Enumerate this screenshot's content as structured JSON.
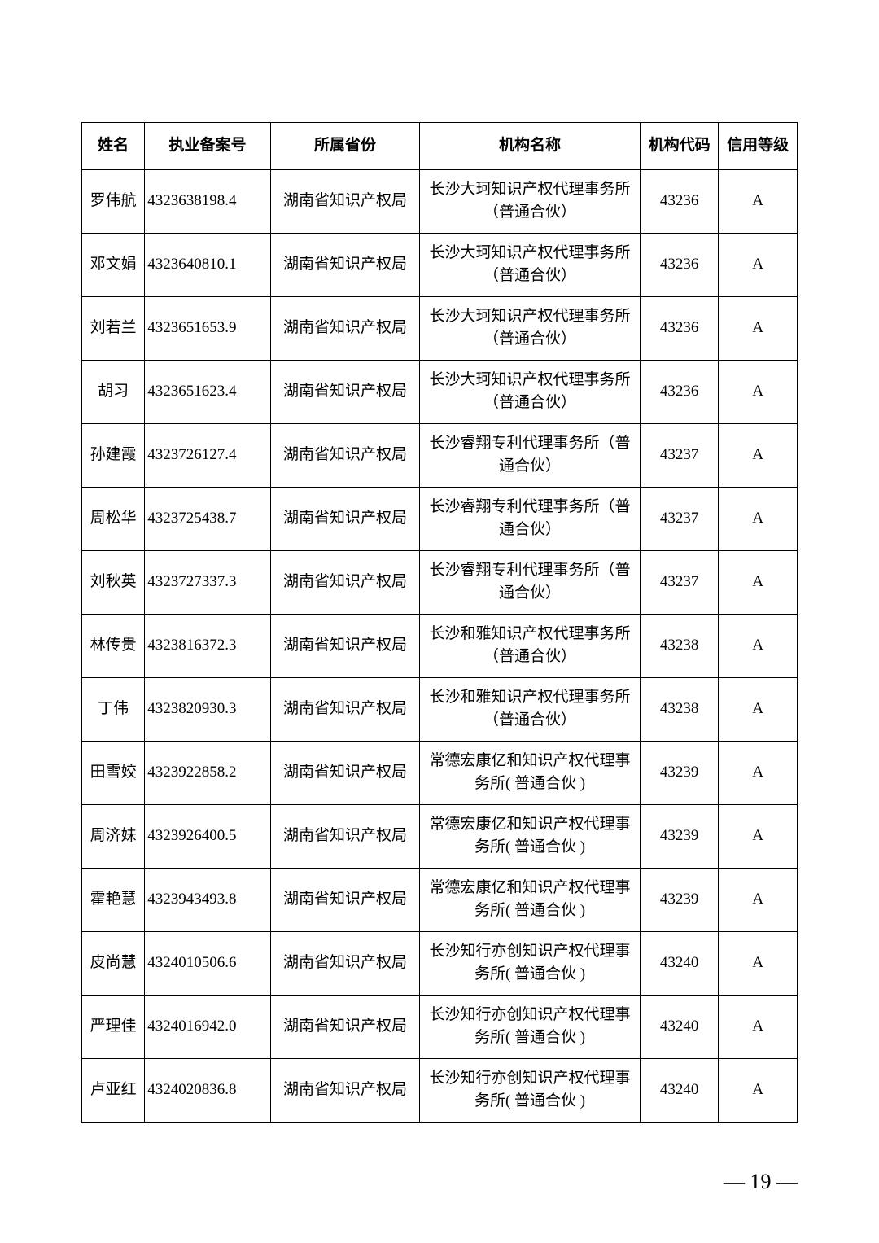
{
  "table": {
    "columns": [
      "姓名",
      "执业备案号",
      "所属省份",
      "机构名称",
      "机构代码",
      "信用等级"
    ],
    "col_keys": [
      "name",
      "license",
      "province",
      "institution",
      "code",
      "grade"
    ],
    "col_classes": [
      "col-name",
      "col-license",
      "col-prov",
      "col-inst",
      "col-code",
      "col-grade"
    ],
    "rows": [
      {
        "name": "罗伟航",
        "license": "4323638198.4",
        "province": "湖南省知识产权局",
        "institution": "长沙大珂知识产权代理事务所（普通合伙）",
        "code": "43236",
        "grade": "A"
      },
      {
        "name": "邓文娟",
        "license": "4323640810.1",
        "province": "湖南省知识产权局",
        "institution": "长沙大珂知识产权代理事务所（普通合伙）",
        "code": "43236",
        "grade": "A"
      },
      {
        "name": "刘若兰",
        "license": "4323651653.9",
        "province": "湖南省知识产权局",
        "institution": "长沙大珂知识产权代理事务所（普通合伙）",
        "code": "43236",
        "grade": "A"
      },
      {
        "name": "胡习",
        "license": "4323651623.4",
        "province": "湖南省知识产权局",
        "institution": "长沙大珂知识产权代理事务所（普通合伙）",
        "code": "43236",
        "grade": "A"
      },
      {
        "name": "孙建霞",
        "license": "4323726127.4",
        "province": "湖南省知识产权局",
        "institution": "长沙睿翔专利代理事务所（普通合伙）",
        "code": "43237",
        "grade": "A"
      },
      {
        "name": "周松华",
        "license": "4323725438.7",
        "province": "湖南省知识产权局",
        "institution": "长沙睿翔专利代理事务所（普通合伙）",
        "code": "43237",
        "grade": "A"
      },
      {
        "name": "刘秋英",
        "license": "4323727337.3",
        "province": "湖南省知识产权局",
        "institution": "长沙睿翔专利代理事务所（普通合伙）",
        "code": "43237",
        "grade": "A"
      },
      {
        "name": "林传贵",
        "license": "4323816372.3",
        "province": "湖南省知识产权局",
        "institution": "长沙和雅知识产权代理事务所（普通合伙）",
        "code": "43238",
        "grade": "A"
      },
      {
        "name": "丁伟",
        "license": "4323820930.3",
        "province": "湖南省知识产权局",
        "institution": "长沙和雅知识产权代理事务所（普通合伙）",
        "code": "43238",
        "grade": "A"
      },
      {
        "name": "田雪姣",
        "license": "4323922858.2",
        "province": "湖南省知识产权局",
        "institution": "常德宏康亿和知识产权代理事务所( 普通合伙 )",
        "code": "43239",
        "grade": "A"
      },
      {
        "name": "周济妹",
        "license": "4323926400.5",
        "province": "湖南省知识产权局",
        "institution": "常德宏康亿和知识产权代理事务所( 普通合伙 )",
        "code": "43239",
        "grade": "A"
      },
      {
        "name": "霍艳慧",
        "license": "4323943493.8",
        "province": "湖南省知识产权局",
        "institution": "常德宏康亿和知识产权代理事务所( 普通合伙 )",
        "code": "43239",
        "grade": "A"
      },
      {
        "name": "皮尚慧",
        "license": "4324010506.6",
        "province": "湖南省知识产权局",
        "institution": "长沙知行亦创知识产权代理事务所( 普通合伙 )",
        "code": "43240",
        "grade": "A"
      },
      {
        "name": "严理佳",
        "license": "4324016942.0",
        "province": "湖南省知识产权局",
        "institution": "长沙知行亦创知识产权代理事务所( 普通合伙 )",
        "code": "43240",
        "grade": "A"
      },
      {
        "name": "卢亚红",
        "license": "4324020836.8",
        "province": "湖南省知识产权局",
        "institution": "长沙知行亦创知识产权代理事务所( 普通合伙 )",
        "code": "43240",
        "grade": "A"
      }
    ]
  },
  "page_number": "— 19 —",
  "style": {
    "border_color": "#000000",
    "background_color": "#ffffff",
    "header_fontsize": 19,
    "cell_fontsize": 19,
    "page_fontsize": 26
  }
}
